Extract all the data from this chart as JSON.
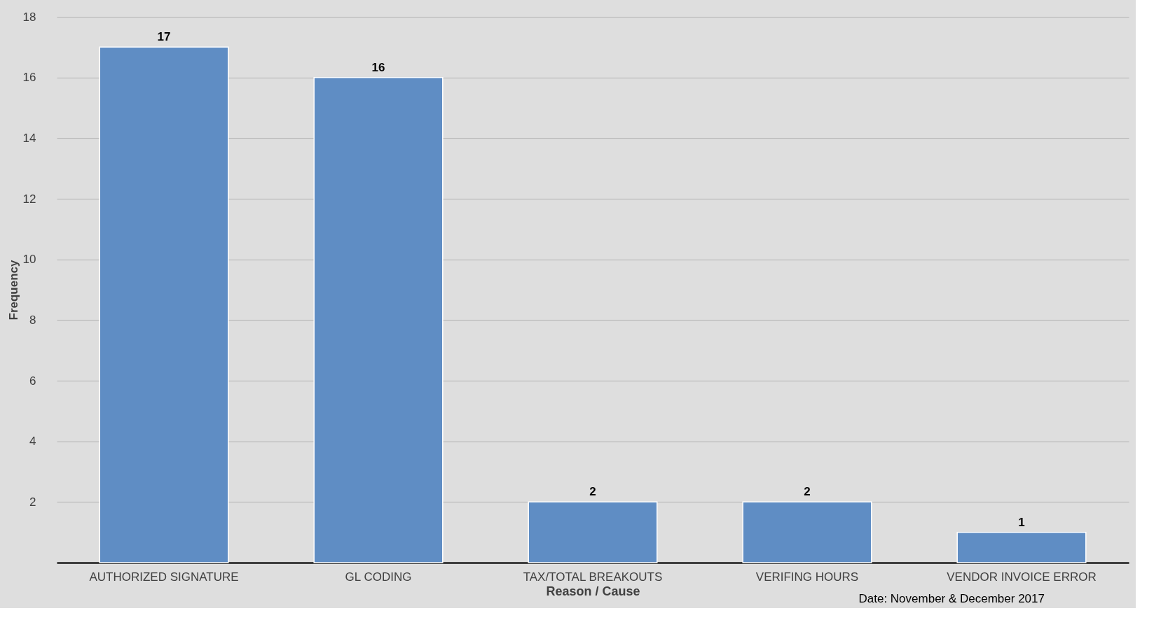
{
  "chart_data": {
    "type": "bar",
    "xlabel": "Reason / Cause",
    "ylabel": "Frequency",
    "categories": [
      "AUTHORIZED SIGNATURE",
      "GL CODING",
      "TAX/TOTAL BREAKOUTS",
      "VERIFING HOURS",
      "VENDOR INVOICE ERROR"
    ],
    "values": [
      17,
      16,
      2,
      2,
      1
    ],
    "color": "#5f8dc4",
    "ylim": [
      0,
      18
    ],
    "yticks": [
      {
        "value": 0,
        "label": null
      },
      2,
      4,
      6,
      8,
      10,
      12,
      14,
      16,
      18
    ],
    "grid": "y",
    "data_labels": true,
    "annotations": [
      "Date: November & December 2017"
    ]
  }
}
